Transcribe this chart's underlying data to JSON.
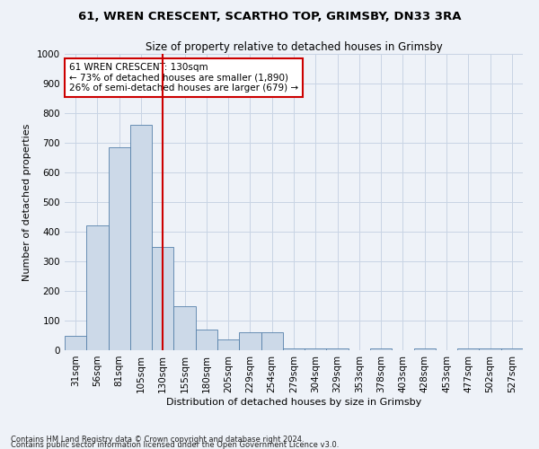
{
  "title_line1": "61, WREN CRESCENT, SCARTHO TOP, GRIMSBY, DN33 3RA",
  "title_line2": "Size of property relative to detached houses in Grimsby",
  "xlabel": "Distribution of detached houses by size in Grimsby",
  "ylabel": "Number of detached properties",
  "footnote1": "Contains HM Land Registry data © Crown copyright and database right 2024.",
  "footnote2": "Contains public sector information licensed under the Open Government Licence v3.0.",
  "categories": [
    "31sqm",
    "56sqm",
    "81sqm",
    "105sqm",
    "130sqm",
    "155sqm",
    "180sqm",
    "205sqm",
    "229sqm",
    "254sqm",
    "279sqm",
    "304sqm",
    "329sqm",
    "353sqm",
    "378sqm",
    "403sqm",
    "428sqm",
    "453sqm",
    "477sqm",
    "502sqm",
    "527sqm"
  ],
  "values": [
    48,
    420,
    685,
    760,
    350,
    150,
    70,
    37,
    60,
    60,
    5,
    5,
    5,
    0,
    5,
    0,
    5,
    0,
    5,
    5,
    5
  ],
  "bar_color": "#ccd9e8",
  "bar_edge_color": "#5580aa",
  "vline_x": 4,
  "vline_color": "#cc0000",
  "annotation_text": "61 WREN CRESCENT: 130sqm\n← 73% of detached houses are smaller (1,890)\n26% of semi-detached houses are larger (679) →",
  "annotation_box_color": "#ffffff",
  "annotation_box_edge": "#cc0000",
  "ylim": [
    0,
    1000
  ],
  "yticks": [
    0,
    100,
    200,
    300,
    400,
    500,
    600,
    700,
    800,
    900,
    1000
  ],
  "bg_color": "#eef2f8",
  "grid_color": "#c8d4e4",
  "title_fontsize": 9.5,
  "subtitle_fontsize": 8.5,
  "axis_label_fontsize": 8,
  "tick_fontsize": 7.5,
  "ylabel_fontsize": 8
}
